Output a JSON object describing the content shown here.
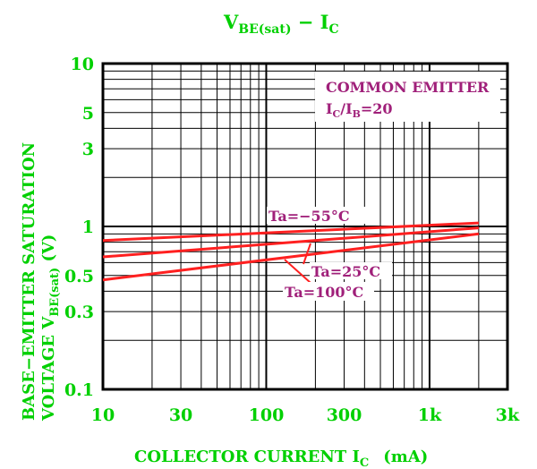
{
  "chart_data": {
    "type": "line",
    "title_main": "V",
    "title_sub": "BE(sat)",
    "title_rest": "  −  I",
    "title_sub2": "C",
    "xlabel_main": "COLLECTOR CURRENT I",
    "xlabel_sub": "C",
    "xlabel_unit": "(mA)",
    "ylabel_line1": "BASE−EMITTER SATURATION",
    "ylabel_line2_main": "VOLTAGE V",
    "ylabel_line2_sub": "BE(sat)",
    "ylabel_line2_unit": " (V)",
    "xscale": "log",
    "yscale": "log",
    "xlim": [
      10,
      3000
    ],
    "ylim": [
      0.1,
      10
    ],
    "grid": true,
    "x_ticks": [
      {
        "value": 10,
        "label": "10"
      },
      {
        "value": 30,
        "label": "30"
      },
      {
        "value": 100,
        "label": "100"
      },
      {
        "value": 300,
        "label": "300"
      },
      {
        "value": 1000,
        "label": "1k"
      },
      {
        "value": 3000,
        "label": "3k"
      }
    ],
    "y_ticks": [
      {
        "value": 10,
        "label": "10"
      },
      {
        "value": 5,
        "label": "5"
      },
      {
        "value": 3,
        "label": "3"
      },
      {
        "value": 1,
        "label": "1"
      },
      {
        "value": 0.5,
        "label": "0.5"
      },
      {
        "value": 0.3,
        "label": "0.3"
      },
      {
        "value": 0.1,
        "label": "0.1"
      }
    ],
    "legend_box": {
      "line1": "COMMON EMITTER",
      "line2_a": "I",
      "line2_a_sub": "C",
      "line2_b": "/I",
      "line2_b_sub": "B",
      "line2_c": "=20"
    },
    "series": [
      {
        "name": "Ta=−55°C",
        "x": [
          10,
          2000
        ],
        "y": [
          0.82,
          1.05
        ]
      },
      {
        "name": "Ta=25°C",
        "x": [
          10,
          2000
        ],
        "y": [
          0.65,
          0.98
        ]
      },
      {
        "name": "Ta=100°C",
        "x": [
          10,
          2000
        ],
        "y": [
          0.47,
          0.9
        ]
      }
    ],
    "colors": {
      "axis_text": "#00d000",
      "series": "#ff2020",
      "annotation": "#a0207a",
      "grid": "#000000"
    }
  }
}
